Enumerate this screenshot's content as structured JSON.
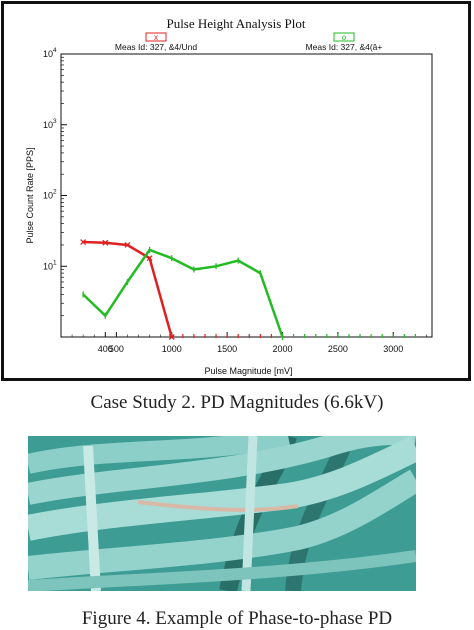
{
  "chart_data": {
    "type": "line",
    "title": "Pulse Height Analysis Plot",
    "xlabel": "Pulse Magnitude [mV]",
    "ylabel": "Pulse Count Rate [PPS]",
    "xlim": [
      0,
      3350
    ],
    "ylim": [
      1,
      10000
    ],
    "yscale": "log",
    "grid": false,
    "legend_position": "top",
    "x_ticks": [
      400,
      500,
      1000,
      1500,
      2000,
      2500,
      3000
    ],
    "x_tick_labels": [
      "400",
      "500",
      "1000",
      "1500",
      "2000",
      "2500",
      "3000"
    ],
    "y_ticks": [
      10,
      100,
      1000,
      10000
    ],
    "y_tick_labels": [
      "10",
      "10",
      "10",
      "10"
    ],
    "y_tick_exponents": [
      "1",
      "2",
      "3",
      "4"
    ],
    "series": [
      {
        "name": "Meas Id: 327, &4/Und",
        "marker_label": "x",
        "color": "#e02020",
        "x": [
          200,
          400,
          600,
          800,
          1000
        ],
        "y": [
          22,
          21.5,
          20,
          13,
          1
        ]
      },
      {
        "name": "Meas Id: 327, &4(â+",
        "marker_label": "o",
        "color": "#22bb22",
        "x": [
          200,
          400,
          600,
          800,
          1000,
          1200,
          1400,
          1600,
          1800,
          2000
        ],
        "y": [
          4,
          2,
          6,
          17,
          13,
          9,
          10,
          12,
          8,
          1
        ]
      }
    ],
    "baseline_markers_x": [
      1000,
      1100,
      1200,
      1300,
      1400,
      1500,
      1600,
      1700,
      1800,
      1900,
      2000,
      2100,
      2200,
      2300,
      2400,
      2500,
      2600,
      2700,
      2800,
      2900,
      3000,
      3100,
      3200
    ]
  },
  "captions": {
    "chart_caption": "Case Study 2. PD Magnitudes (6.6kV)",
    "figure_caption": "Figure 4.  Example of Phase-to-phase PD"
  },
  "colors": {
    "series_red": "#e02020",
    "series_green": "#22bb22",
    "photo_background": "#3d9c93",
    "cable_tape": "#8ccfc8"
  }
}
